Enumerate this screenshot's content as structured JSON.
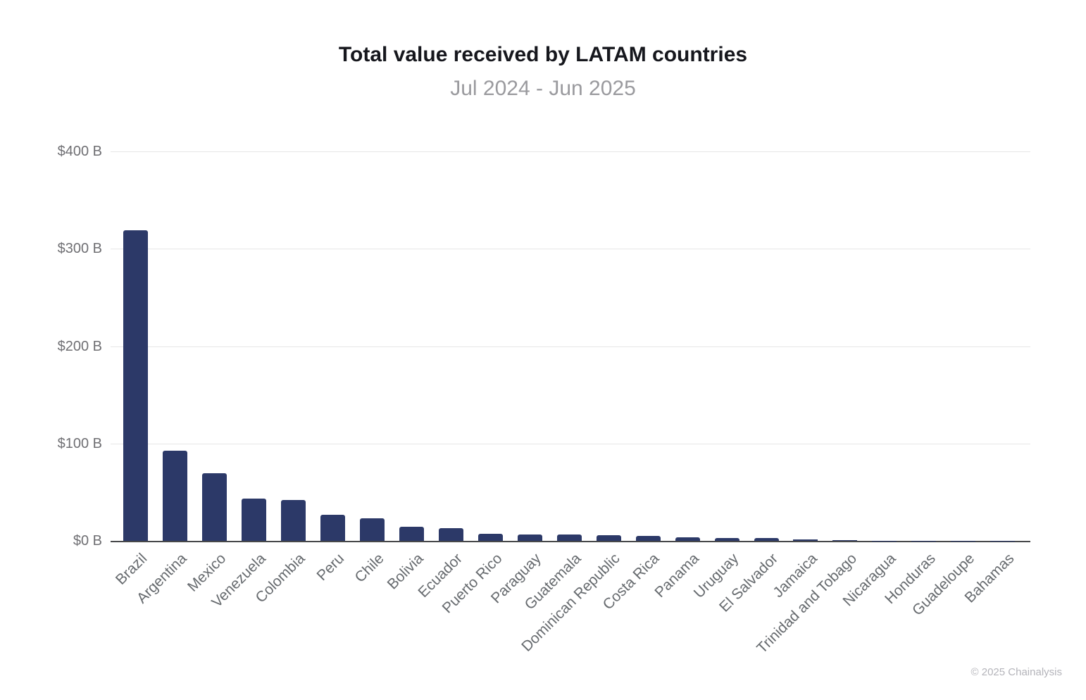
{
  "chart_data": {
    "type": "bar",
    "title": "Total value received by LATAM countries",
    "subtitle": "Jul 2024 - Jun 2025",
    "categories": [
      "Brazil",
      "Argentina",
      "Mexico",
      "Venezuela",
      "Colombia",
      "Peru",
      "Chile",
      "Bolivia",
      "Ecuador",
      "Puerto Rico",
      "Paraguay",
      "Guatemala",
      "Dominican Republic",
      "Costa Rica",
      "Panama",
      "Uruguay",
      "El Salvador",
      "Jamaica",
      "Trinidad and Tobago",
      "Nicaragua",
      "Honduras",
      "Guadeloupe",
      "Bahamas"
    ],
    "values": [
      319,
      93.1,
      69.5,
      43.8,
      42.4,
      26.9,
      23.3,
      14.5,
      13.3,
      7.8,
      7.0,
      6.9,
      5.8,
      5.6,
      4.1,
      3.0,
      2.9,
      2.1,
      0.8,
      0.6,
      0.5,
      0.15,
      0.1
    ],
    "value_unit": "billion USD",
    "xlabel": "",
    "ylabel": "",
    "ylim": [
      0,
      400
    ],
    "ytick_step": 100,
    "ytick_labels": [
      "$0 B",
      "$100 B",
      "$200 B",
      "$300 B",
      "$400 B"
    ],
    "grid": "horizontal",
    "legend": "none",
    "bar_color": "#2c3968",
    "credit": "© 2025 Chainalysis"
  }
}
